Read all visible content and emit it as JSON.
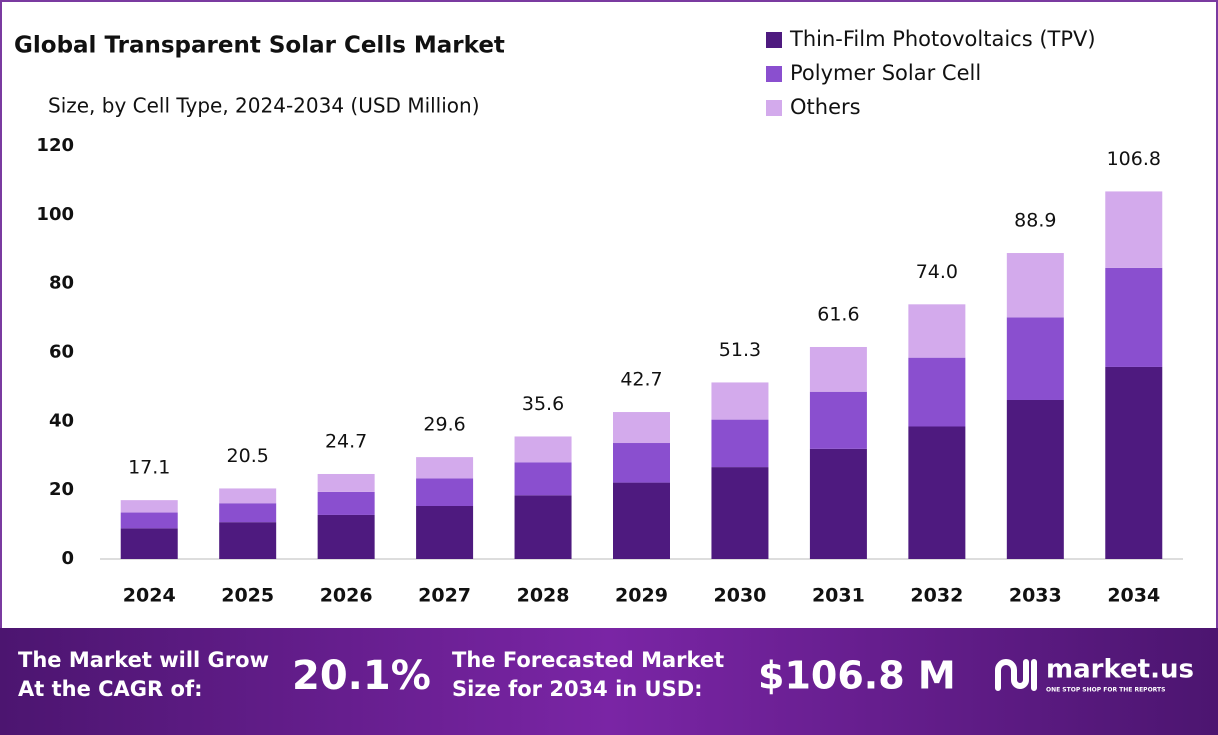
{
  "chart_data": {
    "type": "stacked_bar",
    "title": "Global Transparent Solar Cells Market",
    "subtitle": "Size, by  Cell Type, 2024-2034 (USD Million)",
    "categories": [
      "2024",
      "2025",
      "2026",
      "2027",
      "2028",
      "2029",
      "2030",
      "2031",
      "2032",
      "2033",
      "2034"
    ],
    "series": [
      {
        "name": "Thin-Film Photovoltaics (TPV)",
        "color": "#4e1a7f",
        "values": [
          8.9,
          10.7,
          12.8,
          15.4,
          18.5,
          22.2,
          26.7,
          32.0,
          38.5,
          46.2,
          55.8
        ]
      },
      {
        "name": "Polymer Solar Cell",
        "color": "#8a4fcf",
        "values": [
          4.6,
          5.5,
          6.7,
          8.0,
          9.6,
          11.5,
          13.8,
          16.6,
          20.0,
          24.0,
          28.8
        ]
      },
      {
        "name": "Others",
        "color": "#d3aaec",
        "values": [
          3.6,
          4.3,
          5.2,
          6.2,
          7.5,
          9.0,
          10.8,
          13.0,
          15.5,
          18.7,
          22.2
        ]
      }
    ],
    "totals": {
      "values": [
        17.1,
        20.5,
        24.7,
        29.6,
        35.6,
        42.7,
        51.3,
        61.6,
        74.0,
        88.9,
        106.8
      ],
      "value_labels": [
        "17.1",
        "20.5",
        "24.7",
        "29.6",
        "35.6",
        "42.7",
        "51.3",
        "61.6",
        "74.0",
        "88.9",
        "106.8"
      ]
    },
    "ylim": [
      0,
      120
    ],
    "yticks": [
      0,
      20,
      40,
      60,
      80,
      100,
      120
    ],
    "grid": false
  },
  "footer": {
    "cagr_text_1": "The Market will Grow",
    "cagr_text_2": "At the CAGR of:",
    "cagr": "20.1%",
    "forecast_text_1": "The Forecasted Market",
    "forecast_text_2": "Size for 2034 in USD:",
    "forecast": "$106.8 M",
    "brand": "market.us",
    "tagline": "ONE STOP SHOP FOR THE REPORTS"
  }
}
